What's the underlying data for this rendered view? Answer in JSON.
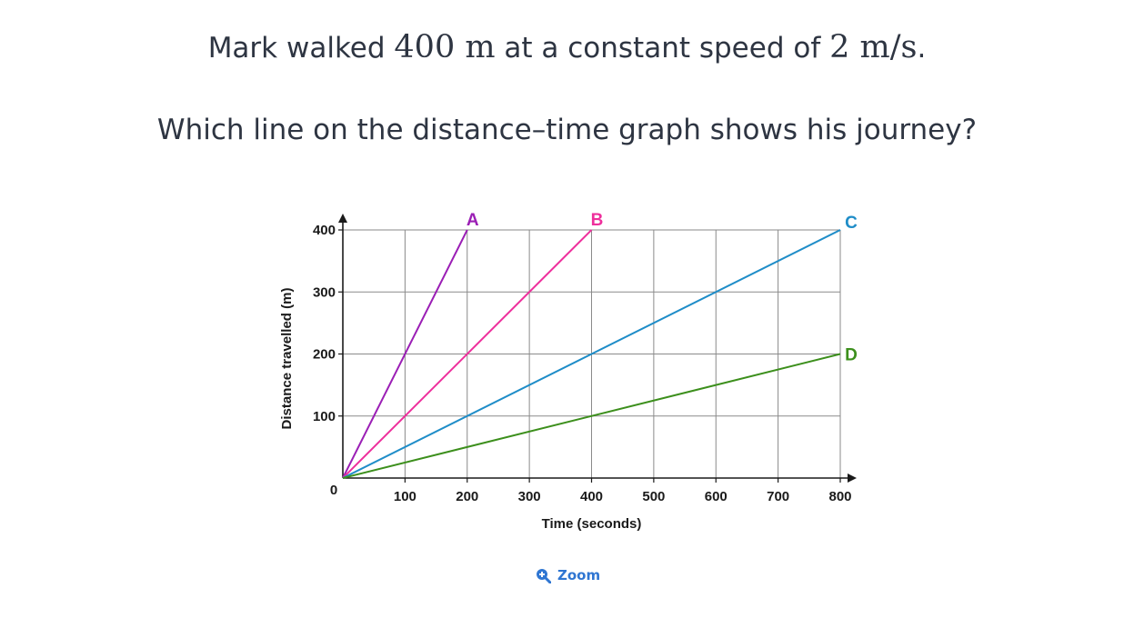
{
  "question": {
    "line1_before": "Mark walked ",
    "distance_math": "400 m",
    "line1_middle": " at a constant speed of ",
    "speed_math": "2 m/s",
    "line1_after": ".",
    "line2": "Which line on the distance–time graph shows his journey?"
  },
  "zoom": {
    "label": "Zoom",
    "icon": "zoom-in-icon",
    "color": "#2f76d2"
  },
  "chart_data": {
    "type": "line",
    "xlabel": "Time (seconds)",
    "ylabel": "Distance travelled (m)",
    "xlim": [
      0,
      800
    ],
    "ylim": [
      0,
      400
    ],
    "x_ticks": [
      100,
      200,
      300,
      400,
      500,
      600,
      700,
      800
    ],
    "y_ticks": [
      100,
      200,
      300,
      400
    ],
    "origin_label": "0",
    "grid": true,
    "series": [
      {
        "name": "A",
        "color": "#9b1fb5",
        "x": [
          0,
          200
        ],
        "y": [
          0,
          400
        ]
      },
      {
        "name": "B",
        "color": "#ee2f9c",
        "x": [
          0,
          400
        ],
        "y": [
          0,
          400
        ]
      },
      {
        "name": "C",
        "color": "#1f8dc8",
        "x": [
          0,
          800
        ],
        "y": [
          0,
          400
        ]
      },
      {
        "name": "D",
        "color": "#3c8f1c",
        "x": [
          0,
          800
        ],
        "y": [
          0,
          200
        ]
      }
    ]
  }
}
